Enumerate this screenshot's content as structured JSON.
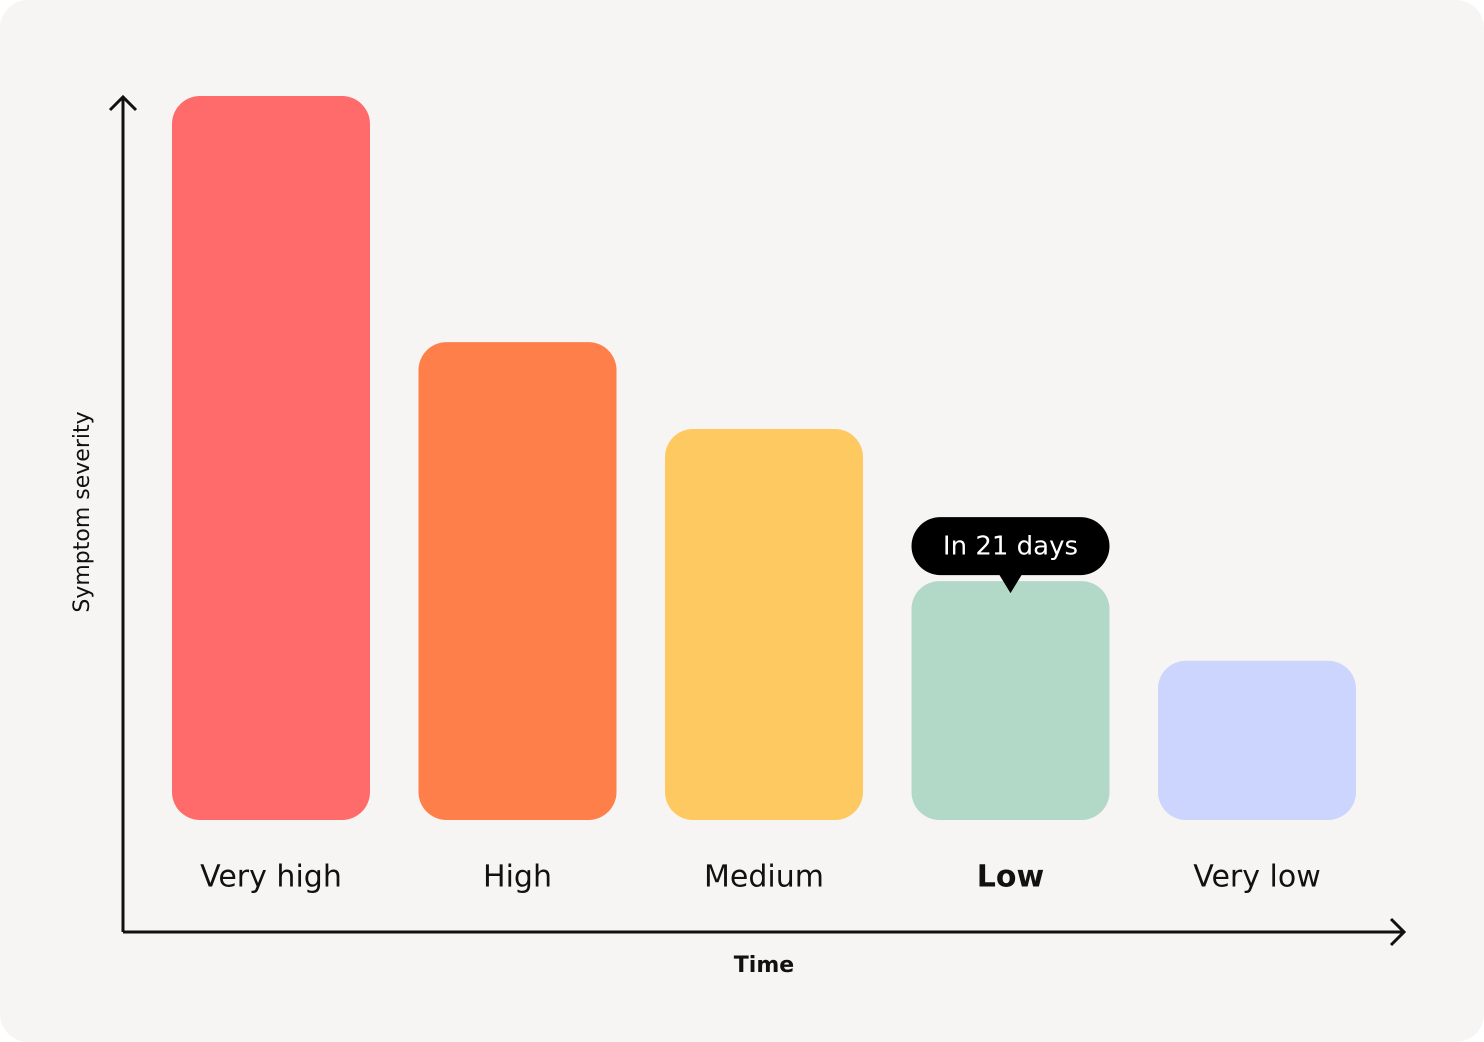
{
  "chart_data": {
    "type": "bar",
    "x_label": "Time",
    "y_label": "Symptom severity",
    "categories": [
      "Very high",
      "High",
      "Medium",
      "Low",
      "Very low"
    ],
    "values": [
      100,
      66,
      54,
      33,
      22
    ],
    "colors": [
      "#ff6b6b",
      "#ff7f4a",
      "#fec960",
      "#b2d9c8",
      "#cbd5fd"
    ],
    "ylim": [
      0,
      100
    ],
    "annotation": {
      "text": "In 21 days",
      "category": "Low"
    }
  }
}
